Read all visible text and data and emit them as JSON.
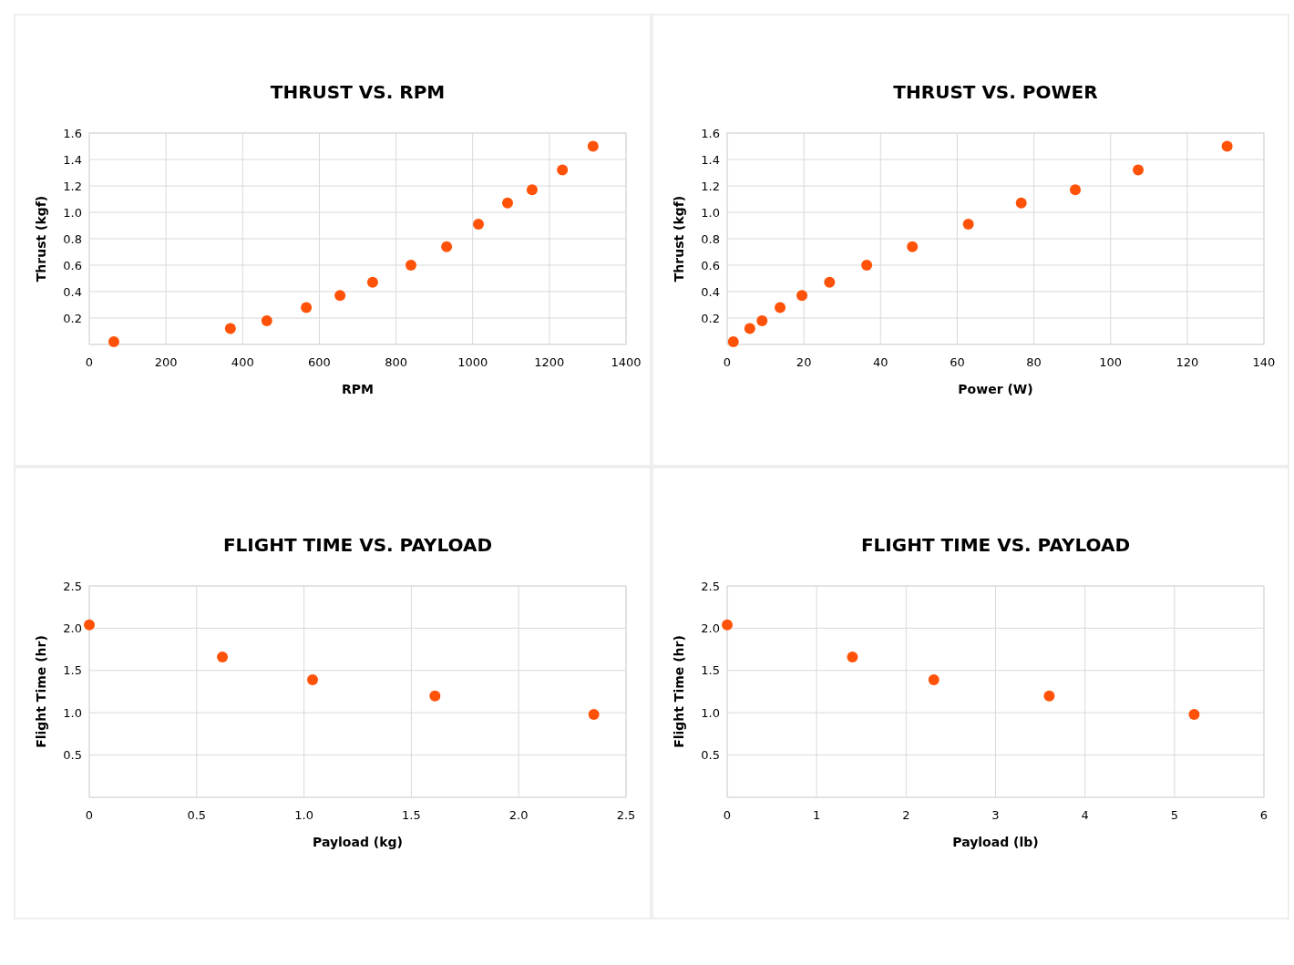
{
  "chart_data": [
    {
      "type": "scatter",
      "title": "THRUST VS. RPM",
      "xlabel": "RPM",
      "ylabel": "Thrust (kgf)",
      "xlim": [
        0,
        1400
      ],
      "xticks": [
        0,
        200,
        400,
        600,
        800,
        1000,
        1200,
        1400
      ],
      "ylim": [
        0,
        1.6
      ],
      "yticks": [
        {
          "value": 0,
          "label": null
        },
        0.2,
        0.4,
        0.6,
        0.8,
        {
          "value": 1,
          "label": "1.0"
        },
        1.2,
        1.4,
        1.6
      ],
      "grid": true,
      "marker": "circle",
      "series": [
        {
          "color": "#ff5208",
          "x": [
            64,
            368,
            463,
            566,
            654,
            739,
            839,
            932,
            1015,
            1091,
            1155,
            1234,
            1314
          ],
          "values": [
            0.02,
            0.12,
            0.18,
            0.28,
            0.37,
            0.47,
            0.6,
            0.74,
            0.91,
            1.07,
            1.17,
            1.32,
            1.5
          ]
        }
      ]
    },
    {
      "type": "scatter",
      "title": "THRUST VS. POWER",
      "xlabel": "Power (W)",
      "ylabel": "Thrust (kgf)",
      "xlim": [
        0,
        140
      ],
      "xticks": [
        0,
        20,
        40,
        60,
        80,
        100,
        120,
        140
      ],
      "ylim": [
        0,
        1.6
      ],
      "yticks": [
        {
          "value": 0,
          "label": null
        },
        0.2,
        0.4,
        0.6,
        0.8,
        {
          "value": 1,
          "label": "1.0"
        },
        1.2,
        1.4,
        1.6
      ],
      "grid": true,
      "marker": "circle",
      "series": [
        {
          "color": "#ff5208",
          "x": [
            1.6,
            5.9,
            9.1,
            13.8,
            19.5,
            26.7,
            36.4,
            48.3,
            62.9,
            76.7,
            90.8,
            107.2,
            130.4
          ],
          "values": [
            0.02,
            0.12,
            0.18,
            0.28,
            0.37,
            0.47,
            0.6,
            0.74,
            0.91,
            1.07,
            1.17,
            1.32,
            1.5
          ]
        }
      ]
    },
    {
      "type": "scatter",
      "title": "FLIGHT TIME VS. PAYLOAD",
      "xlabel": "Payload (kg)",
      "ylabel": "Flight Time (hr)",
      "xlim": [
        0,
        2.5
      ],
      "xticks": [
        0,
        0.5,
        {
          "value": 1,
          "label": "1.0"
        },
        1.5,
        {
          "value": 2,
          "label": "2.0"
        },
        2.5
      ],
      "ylim": [
        0,
        2.5
      ],
      "yticks": [
        {
          "value": 0,
          "label": null
        },
        0.5,
        {
          "value": 1,
          "label": "1.0"
        },
        1.5,
        {
          "value": 2,
          "label": "2.0"
        },
        2.5
      ],
      "grid": true,
      "marker": "circle",
      "series": [
        {
          "color": "#ff5208",
          "x": [
            0,
            0.62,
            1.04,
            1.61,
            2.35
          ],
          "values": [
            2.04,
            1.66,
            1.39,
            1.2,
            0.98
          ]
        }
      ]
    },
    {
      "type": "scatter",
      "title": "FLIGHT TIME VS. PAYLOAD",
      "xlabel": "Payload (lb)",
      "ylabel": "Flight Time (hr)",
      "xlim": [
        0,
        6
      ],
      "xticks": [
        0,
        1,
        2,
        3,
        4,
        5,
        6
      ],
      "ylim": [
        0,
        2.5
      ],
      "yticks": [
        {
          "value": 0,
          "label": null
        },
        0.5,
        {
          "value": 1,
          "label": "1.0"
        },
        1.5,
        {
          "value": 2,
          "label": "2.0"
        },
        2.5
      ],
      "grid": true,
      "marker": "circle",
      "series": [
        {
          "color": "#ff5208",
          "x": [
            0,
            1.4,
            2.31,
            3.6,
            5.22
          ],
          "values": [
            2.04,
            1.66,
            1.39,
            1.2,
            0.98
          ]
        }
      ]
    }
  ]
}
